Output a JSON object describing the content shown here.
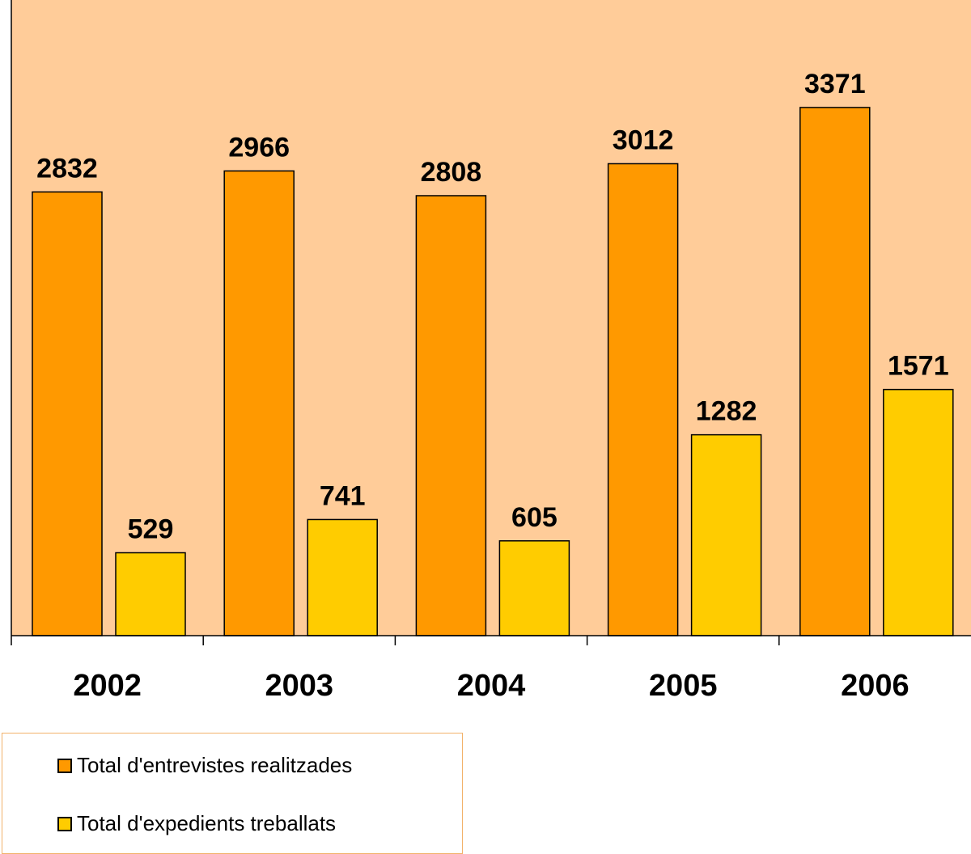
{
  "chart_data": {
    "type": "bar",
    "categories": [
      "2002",
      "2003",
      "2004",
      "2005",
      "2006"
    ],
    "series": [
      {
        "name": "Total d'entrevistes realitzades",
        "values": [
          2832,
          2966,
          2808,
          3012,
          3371
        ],
        "color": "#ff9900"
      },
      {
        "name": "Total d'expedients treballats",
        "values": [
          529,
          741,
          605,
          1282,
          1571
        ],
        "color": "#ffcc00"
      }
    ],
    "ylim": [
      0,
      4000
    ],
    "grid": false,
    "legend": "bottom-left",
    "plot_background": "#ffcc99"
  }
}
